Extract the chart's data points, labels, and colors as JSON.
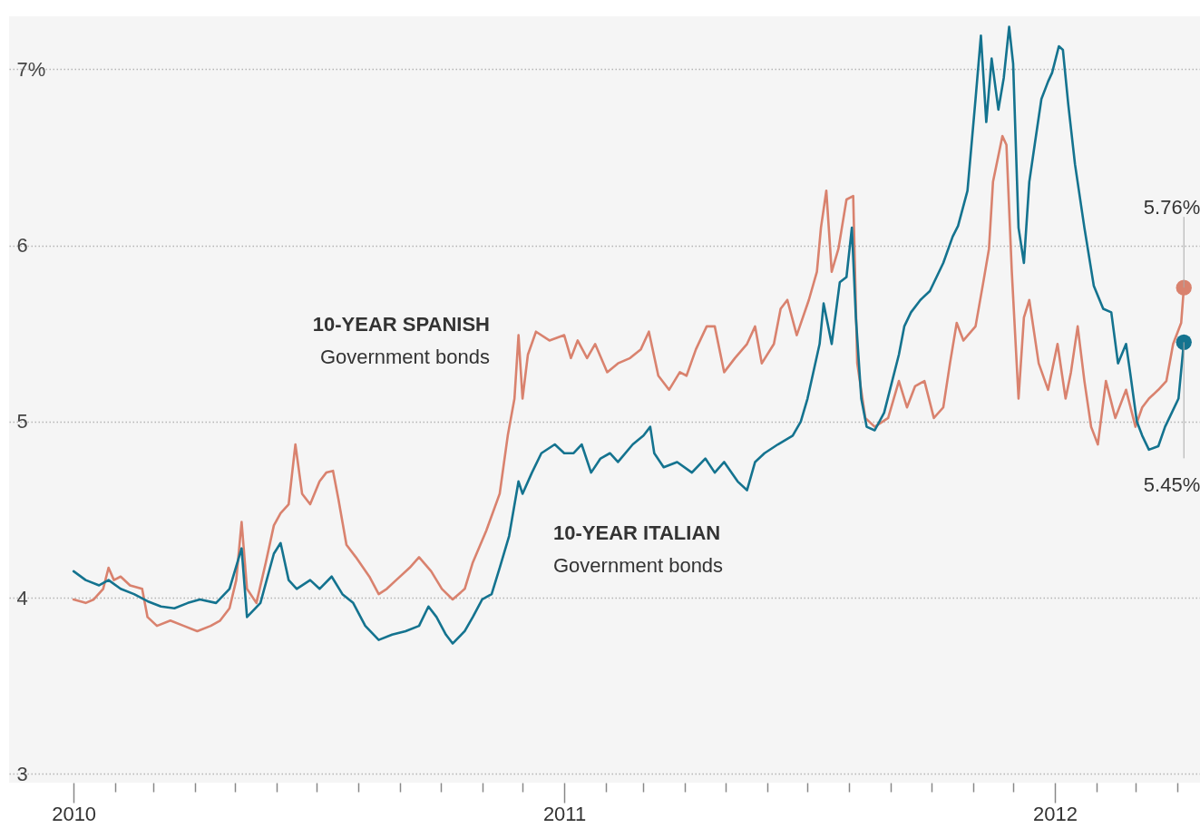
{
  "chart_data": {
    "type": "line",
    "xlim": [
      "2009-11-14",
      "2012-04-18"
    ],
    "ylim": [
      2.95,
      7.3
    ],
    "xticks": [
      {
        "value": "2010-01-01",
        "label": "2010"
      },
      {
        "value": "2010-02-01",
        "label": null
      },
      {
        "value": "2010-03-01",
        "label": null
      },
      {
        "value": "2010-04-01",
        "label": null
      },
      {
        "value": "2010-05-01",
        "label": null
      },
      {
        "value": "2010-06-01",
        "label": null
      },
      {
        "value": "2010-07-01",
        "label": null
      },
      {
        "value": "2010-08-01",
        "label": null
      },
      {
        "value": "2010-09-01",
        "label": null
      },
      {
        "value": "2010-10-01",
        "label": null
      },
      {
        "value": "2010-11-01",
        "label": null
      },
      {
        "value": "2010-12-01",
        "label": null
      },
      {
        "value": "2011-01-01",
        "label": "2011"
      },
      {
        "value": "2011-02-01",
        "label": null
      },
      {
        "value": "2011-03-01",
        "label": null
      },
      {
        "value": "2011-04-01",
        "label": null
      },
      {
        "value": "2011-05-01",
        "label": null
      },
      {
        "value": "2011-06-01",
        "label": null
      },
      {
        "value": "2011-07-01",
        "label": null
      },
      {
        "value": "2011-08-01",
        "label": null
      },
      {
        "value": "2011-09-01",
        "label": null
      },
      {
        "value": "2011-10-01",
        "label": null
      },
      {
        "value": "2011-11-01",
        "label": null
      },
      {
        "value": "2011-12-01",
        "label": null
      },
      {
        "value": "2012-01-01",
        "label": "2012"
      },
      {
        "value": "2012-02-01",
        "label": null
      },
      {
        "value": "2012-03-01",
        "label": null
      },
      {
        "value": "2012-04-01",
        "label": null
      }
    ],
    "yticks": [
      3,
      4,
      5,
      6,
      {
        "value": 7,
        "label": "7%"
      }
    ],
    "grid": "y",
    "series": [
      {
        "name": "10-YEAR SPANISH",
        "color": "#d9826e",
        "x": [
          "2010-01-01",
          "2010-01-10",
          "2010-01-16",
          "2010-01-23",
          "2010-01-27",
          "2010-01-31",
          "2010-02-05",
          "2010-02-12",
          "2010-02-21",
          "2010-02-25",
          "2010-03-04",
          "2010-03-14",
          "2010-03-24",
          "2010-04-03",
          "2010-04-13",
          "2010-04-20",
          "2010-04-27",
          "2010-05-02",
          "2010-05-06",
          "2010-05-10",
          "2010-05-17",
          "2010-05-24",
          "2010-05-30",
          "2010-06-04",
          "2010-06-10",
          "2010-06-15",
          "2010-06-20",
          "2010-06-26",
          "2010-07-03",
          "2010-07-08",
          "2010-07-13",
          "2010-07-17",
          "2010-07-23",
          "2010-07-30",
          "2010-08-09",
          "2010-08-16",
          "2010-08-22",
          "2010-08-29",
          "2010-09-08",
          "2010-09-15",
          "2010-09-24",
          "2010-10-02",
          "2010-10-10",
          "2010-10-19",
          "2010-10-25",
          "2010-11-04",
          "2010-11-14",
          "2010-11-20",
          "2010-11-25",
          "2010-11-28",
          "2010-12-01",
          "2010-12-05",
          "2010-12-11",
          "2010-12-21",
          "2011-01-01",
          "2011-01-06",
          "2011-01-11",
          "2011-01-18",
          "2011-01-24",
          "2011-02-02",
          "2011-02-10",
          "2011-02-19",
          "2011-02-27",
          "2011-03-05",
          "2011-03-12",
          "2011-03-20",
          "2011-03-28",
          "2011-04-02",
          "2011-04-09",
          "2011-04-17",
          "2011-04-23",
          "2011-04-30",
          "2011-05-08",
          "2011-05-17",
          "2011-05-23",
          "2011-05-28",
          "2011-06-06",
          "2011-06-11",
          "2011-06-16",
          "2011-06-23",
          "2011-07-02",
          "2011-07-08",
          "2011-07-11",
          "2011-07-15",
          "2011-07-19",
          "2011-07-24",
          "2011-07-30",
          "2011-08-04",
          "2011-08-07",
          "2011-08-13",
          "2011-08-20",
          "2011-08-30",
          "2011-09-07",
          "2011-09-13",
          "2011-09-19",
          "2011-09-26",
          "2011-10-03",
          "2011-10-10",
          "2011-10-15",
          "2011-10-20",
          "2011-10-25",
          "2011-11-03",
          "2011-11-09",
          "2011-11-13",
          "2011-11-16",
          "2011-11-23",
          "2011-11-26",
          "2011-11-30",
          "2011-12-05",
          "2011-12-09",
          "2011-12-13",
          "2011-12-20",
          "2011-12-27",
          "2012-01-03",
          "2012-01-09",
          "2012-01-13",
          "2012-01-18",
          "2012-01-23",
          "2012-01-28",
          "2012-02-02",
          "2012-02-08",
          "2012-02-15",
          "2012-02-23",
          "2012-03-01",
          "2012-03-06",
          "2012-03-11",
          "2012-03-18",
          "2012-03-24",
          "2012-03-29",
          "2012-04-04",
          "2012-04-06"
        ],
        "values": [
          3.99,
          3.97,
          3.99,
          4.05,
          4.17,
          4.1,
          4.12,
          4.07,
          4.05,
          3.89,
          3.84,
          3.87,
          3.84,
          3.81,
          3.84,
          3.87,
          3.94,
          4.1,
          4.43,
          4.05,
          3.97,
          4.2,
          4.41,
          4.48,
          4.53,
          4.87,
          4.59,
          4.53,
          4.66,
          4.71,
          4.72,
          4.56,
          4.3,
          4.23,
          4.12,
          4.02,
          4.05,
          4.1,
          4.17,
          4.23,
          4.15,
          4.05,
          3.99,
          4.05,
          4.2,
          4.38,
          4.59,
          4.92,
          5.13,
          5.49,
          5.13,
          5.38,
          5.51,
          5.46,
          5.49,
          5.36,
          5.46,
          5.36,
          5.44,
          5.28,
          5.33,
          5.36,
          5.41,
          5.51,
          5.26,
          5.18,
          5.28,
          5.26,
          5.41,
          5.54,
          5.54,
          5.28,
          5.36,
          5.44,
          5.54,
          5.33,
          5.44,
          5.64,
          5.69,
          5.49,
          5.69,
          5.85,
          6.1,
          6.31,
          5.85,
          5.98,
          6.26,
          6.28,
          5.33,
          5.02,
          4.97,
          5.02,
          5.23,
          5.08,
          5.2,
          5.23,
          5.02,
          5.08,
          5.33,
          5.56,
          5.46,
          5.54,
          5.8,
          5.98,
          6.36,
          6.62,
          6.57,
          5.85,
          5.13,
          5.59,
          5.69,
          5.33,
          5.18,
          5.44,
          5.13,
          5.28,
          5.54,
          5.23,
          4.97,
          4.87,
          5.23,
          5.02,
          5.18,
          4.97,
          5.08,
          5.13,
          5.18,
          5.23,
          5.44,
          5.56,
          5.76
        ]
      },
      {
        "name": "10-YEAR ITALIAN",
        "color": "#14738f",
        "x": [
          "2010-01-01",
          "2010-01-10",
          "2010-01-20",
          "2010-01-27",
          "2010-02-05",
          "2010-02-15",
          "2010-02-25",
          "2010-03-07",
          "2010-03-17",
          "2010-03-27",
          "2010-04-05",
          "2010-04-17",
          "2010-04-27",
          "2010-05-06",
          "2010-05-10",
          "2010-05-20",
          "2010-05-30",
          "2010-06-04",
          "2010-06-10",
          "2010-06-16",
          "2010-06-26",
          "2010-07-03",
          "2010-07-12",
          "2010-07-20",
          "2010-07-28",
          "2010-08-06",
          "2010-08-16",
          "2010-08-26",
          "2010-09-05",
          "2010-09-15",
          "2010-09-22",
          "2010-09-28",
          "2010-10-05",
          "2010-10-10",
          "2010-10-19",
          "2010-10-25",
          "2010-11-01",
          "2010-11-08",
          "2010-11-14",
          "2010-11-21",
          "2010-11-28",
          "2010-12-01",
          "2010-12-08",
          "2010-12-15",
          "2010-12-25",
          "2011-01-01",
          "2011-01-08",
          "2011-01-14",
          "2011-01-21",
          "2011-01-28",
          "2011-02-04",
          "2011-02-10",
          "2011-02-21",
          "2011-03-01",
          "2011-03-06",
          "2011-03-09",
          "2011-03-16",
          "2011-03-26",
          "2011-04-06",
          "2011-04-16",
          "2011-04-23",
          "2011-04-30",
          "2011-05-10",
          "2011-05-17",
          "2011-05-23",
          "2011-05-30",
          "2011-06-09",
          "2011-06-20",
          "2011-06-26",
          "2011-07-01",
          "2011-07-10",
          "2011-07-13",
          "2011-07-19",
          "2011-07-25",
          "2011-07-30",
          "2011-08-03",
          "2011-08-06",
          "2011-08-10",
          "2011-08-14",
          "2011-08-20",
          "2011-08-27",
          "2011-09-02",
          "2011-09-07",
          "2011-09-11",
          "2011-09-16",
          "2011-09-23",
          "2011-09-30",
          "2011-10-10",
          "2011-10-17",
          "2011-10-21",
          "2011-10-28",
          "2011-11-03",
          "2011-11-07",
          "2011-11-11",
          "2011-11-15",
          "2011-11-20",
          "2011-11-24",
          "2011-11-28",
          "2011-12-01",
          "2011-12-05",
          "2011-12-09",
          "2011-12-13",
          "2011-12-17",
          "2011-12-22",
          "2011-12-27",
          "2011-12-30",
          "2012-01-04",
          "2012-01-07",
          "2012-01-11",
          "2012-01-16",
          "2012-01-23",
          "2012-01-30",
          "2012-02-06",
          "2012-02-12",
          "2012-02-17",
          "2012-02-23",
          "2012-02-26",
          "2012-03-02",
          "2012-03-06",
          "2012-03-11",
          "2012-03-18",
          "2012-03-23",
          "2012-03-28",
          "2012-04-02",
          "2012-04-06"
        ],
        "values": [
          4.15,
          4.1,
          4.07,
          4.1,
          4.05,
          4.02,
          3.98,
          3.95,
          3.94,
          3.97,
          3.99,
          3.97,
          4.05,
          4.28,
          3.89,
          3.97,
          4.25,
          4.31,
          4.1,
          4.05,
          4.1,
          4.05,
          4.12,
          4.02,
          3.97,
          3.84,
          3.76,
          3.79,
          3.81,
          3.84,
          3.95,
          3.89,
          3.79,
          3.74,
          3.81,
          3.89,
          3.99,
          4.02,
          4.17,
          4.35,
          4.66,
          4.59,
          4.71,
          4.82,
          4.87,
          4.82,
          4.82,
          4.87,
          4.71,
          4.79,
          4.82,
          4.77,
          4.87,
          4.92,
          4.97,
          4.82,
          4.74,
          4.77,
          4.71,
          4.79,
          4.71,
          4.77,
          4.66,
          4.61,
          4.77,
          4.82,
          4.87,
          4.92,
          5.0,
          5.13,
          5.44,
          5.67,
          5.44,
          5.79,
          5.82,
          6.1,
          5.59,
          5.13,
          4.97,
          4.95,
          5.05,
          5.23,
          5.38,
          5.54,
          5.62,
          5.69,
          5.74,
          5.9,
          6.05,
          6.11,
          6.31,
          6.83,
          7.19,
          6.7,
          7.06,
          6.77,
          6.95,
          7.24,
          7.03,
          6.1,
          5.9,
          6.36,
          6.57,
          6.83,
          6.93,
          6.98,
          7.13,
          7.11,
          6.8,
          6.46,
          6.1,
          5.77,
          5.64,
          5.62,
          5.33,
          5.44,
          5.28,
          5.0,
          4.92,
          4.84,
          4.86,
          4.97,
          5.05,
          5.13,
          5.45
        ]
      },
      {
        "type": "scatter",
        "marker": "circle",
        "color": "#d9826e",
        "x": [
          "2012-04-06"
        ],
        "values": [
          5.76
        ]
      },
      {
        "type": "scatter",
        "marker": "circle",
        "color": "#14738f",
        "x": [
          "2012-04-06"
        ],
        "values": [
          5.45
        ]
      }
    ],
    "annotations": [
      "Government bonds",
      "Government bonds",
      {
        "text": "5.76%",
        "x": "2012-04-06",
        "y": 5.76
      },
      {
        "text": "5.45%",
        "x": "2012-04-06",
        "y": 5.45
      }
    ]
  }
}
